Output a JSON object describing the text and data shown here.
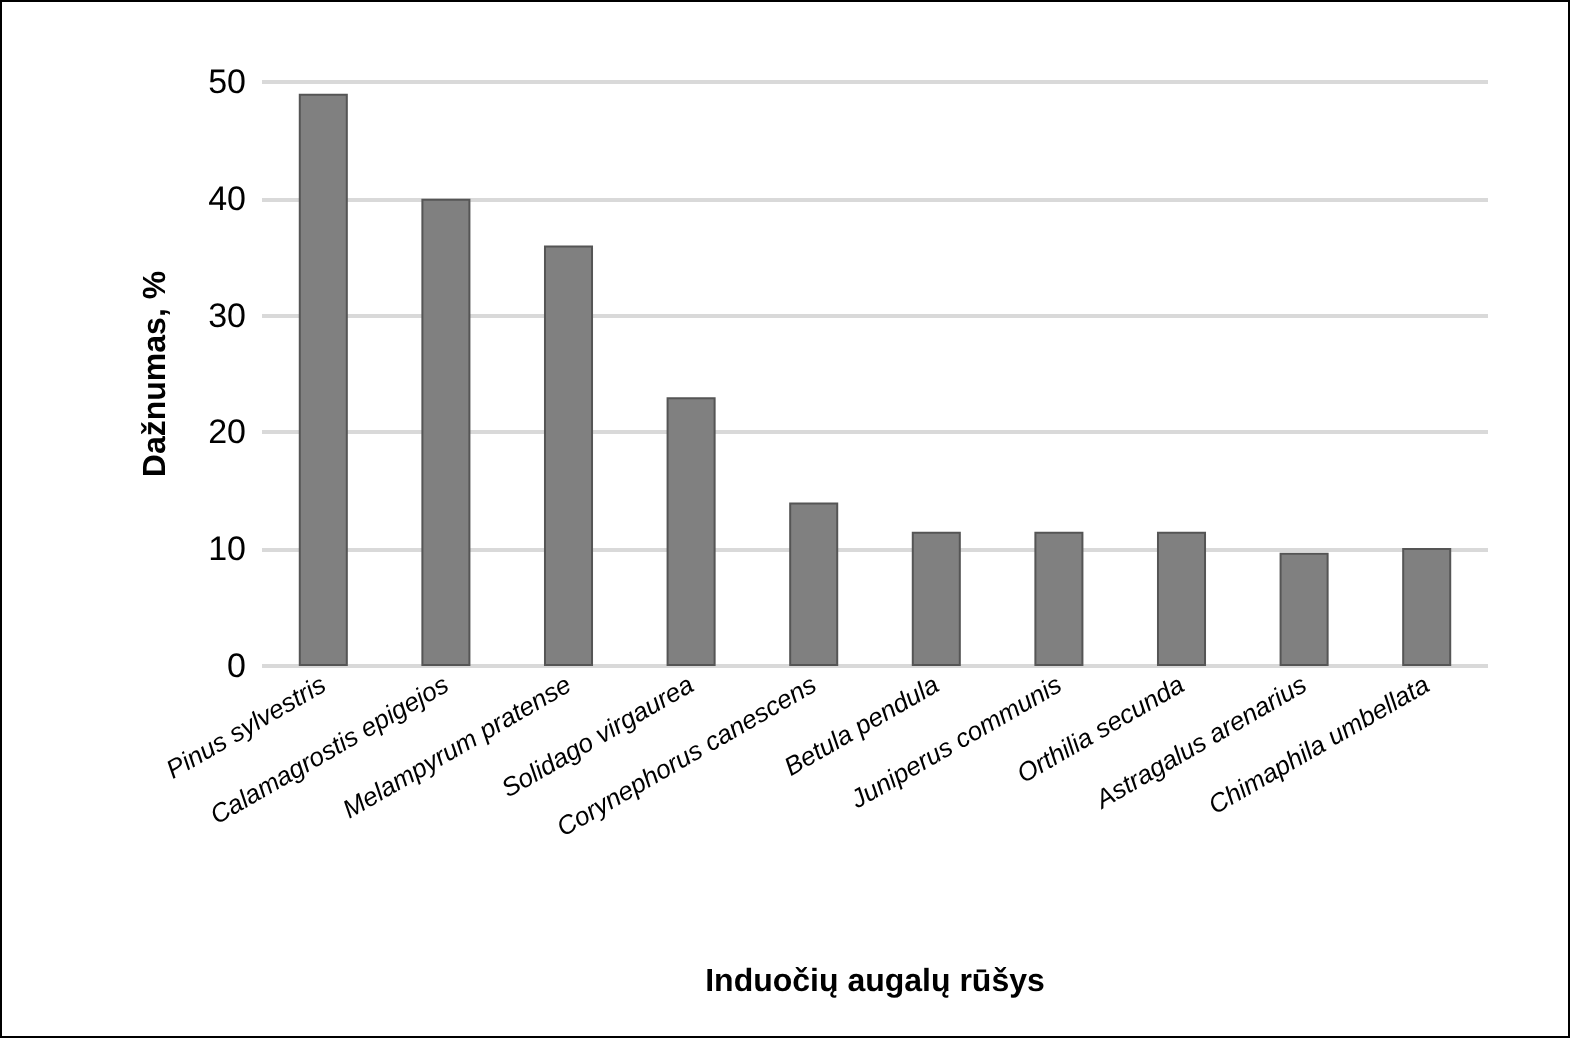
{
  "chart_data": {
    "type": "bar",
    "xlabel": "Induočių augalų rūšys",
    "ylabel": "Dažnumas, %",
    "categories": [
      "Pinus sylvestris",
      "Calamagrostis epigejos",
      "Melampyrum pratense",
      "Solidago virgaurea",
      "Corynephorus canescens",
      "Betula pendula",
      "Juniperus communis",
      "Orthilia secunda",
      "Astragalus arenarius",
      "Chimaphila umbellata"
    ],
    "values": [
      49,
      40,
      36,
      23,
      14,
      11.5,
      11.5,
      11.5,
      9.7,
      10.1
    ],
    "color": "#808080",
    "ylim": [
      0,
      50
    ],
    "yticks": [
      0,
      10,
      20,
      30,
      40,
      50
    ],
    "grid": "y"
  }
}
